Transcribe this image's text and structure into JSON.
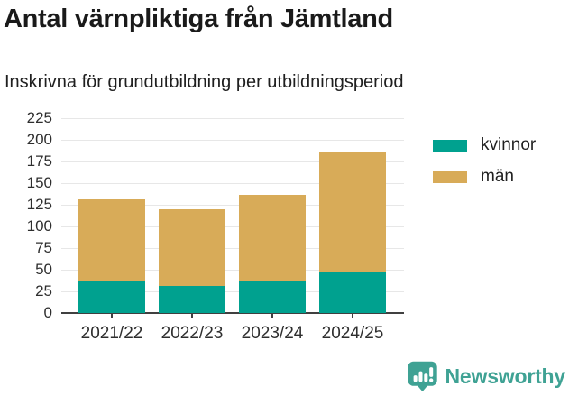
{
  "title": "Antal värnpliktiga från Jämtland",
  "subtitle": "Inskrivna för grundutbildning per utbildningsperiod",
  "chart_data": {
    "type": "bar",
    "stacked": true,
    "categories": [
      "2021/22",
      "2022/23",
      "2023/24",
      "2024/25"
    ],
    "series": [
      {
        "name": "kvinnor",
        "color": "#00a18f",
        "values": [
          36,
          31,
          37,
          47
        ]
      },
      {
        "name": "män",
        "color": "#d8ab58",
        "values": [
          95,
          89,
          99,
          140
        ]
      }
    ],
    "totals": [
      131,
      120,
      136,
      187
    ],
    "title": "Antal värnpliktiga från Jämtland",
    "xlabel": "",
    "ylabel": "",
    "ylim": [
      0,
      225
    ],
    "ytick_step": 25,
    "grid": true,
    "legend_position": "right"
  },
  "footer": {
    "brand": "Newsworthy",
    "logo_color": "#3fa294"
  },
  "colors": {
    "kvinnor": "#00a18f",
    "man": "#d8ab58",
    "gridline": "#e7e7e7",
    "axis": "#404040",
    "text": "#1a1a1a",
    "brand_teal": "#3fa294"
  }
}
